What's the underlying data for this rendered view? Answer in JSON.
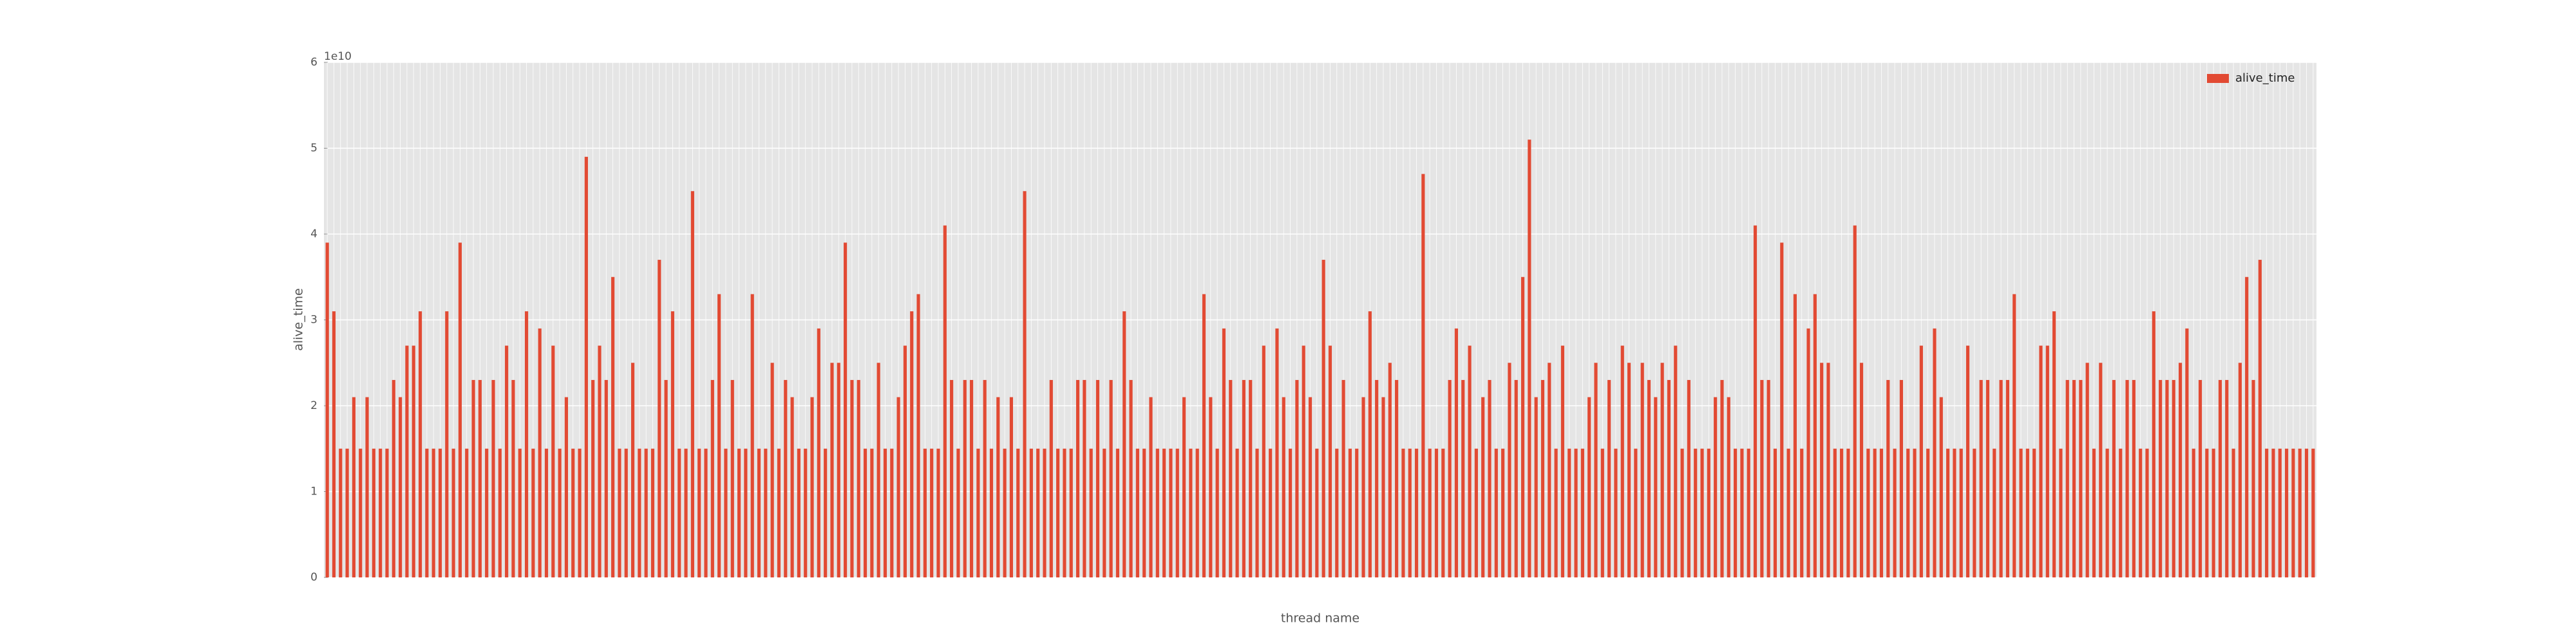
{
  "chart_data": {
    "type": "bar",
    "xlabel": "thread name",
    "ylabel": "alive_time",
    "offset_label": "1e10",
    "categories": [
      null,
      null,
      null,
      null,
      null,
      null,
      null,
      null,
      null,
      null,
      null,
      null,
      null,
      null,
      null,
      null,
      null,
      null,
      null,
      null,
      null,
      null,
      null,
      null,
      null,
      null,
      null,
      null,
      null,
      null,
      null,
      null,
      null,
      null,
      null,
      null,
      null,
      null,
      null,
      null,
      null,
      null,
      null,
      null,
      null,
      null,
      null,
      null,
      null,
      null,
      null,
      null,
      null,
      null,
      null,
      null,
      null,
      null,
      null,
      null,
      null,
      null,
      null,
      null,
      null,
      null,
      null,
      null,
      null,
      null,
      null,
      null,
      null,
      null,
      null,
      null,
      null,
      null,
      null,
      null,
      null,
      null,
      null,
      null,
      null,
      null,
      null,
      null,
      null,
      null,
      null,
      null,
      null,
      null,
      null,
      null,
      null,
      null,
      null,
      null,
      null,
      null,
      null,
      null,
      null,
      null,
      null,
      null,
      null,
      null,
      null,
      null,
      null,
      null,
      null,
      null,
      null,
      null,
      null,
      null,
      null,
      null,
      null,
      null,
      null,
      null,
      null,
      null,
      null,
      null,
      null,
      null,
      null,
      null,
      null,
      null,
      null,
      null,
      null,
      null,
      null,
      null,
      null,
      null,
      null,
      null,
      null,
      null,
      null,
      null,
      null,
      null,
      null,
      null,
      null,
      null,
      null,
      null,
      null,
      null,
      null,
      null,
      null,
      null,
      null,
      null,
      null,
      null,
      null,
      null,
      null,
      null,
      null,
      null,
      null,
      null,
      null,
      null,
      null,
      null,
      null,
      null,
      null,
      null,
      null,
      null,
      null,
      null,
      null,
      null,
      null,
      null,
      null,
      null,
      null,
      null,
      null,
      null,
      null,
      null,
      null,
      null,
      null,
      null,
      null,
      null,
      null,
      null,
      null,
      null,
      null,
      null,
      null,
      null,
      null,
      null,
      null,
      null,
      null,
      null,
      null,
      null,
      null,
      null,
      null,
      null,
      null,
      null,
      null,
      null,
      null,
      null,
      null,
      null,
      null,
      null,
      null,
      null,
      null,
      null,
      null,
      null,
      null,
      null,
      null,
      null,
      null,
      null,
      null,
      null,
      null,
      null,
      null,
      null,
      null,
      null,
      null,
      null,
      null,
      null,
      null,
      null,
      null,
      null,
      null,
      null,
      null,
      null,
      null,
      null,
      null,
      null,
      null,
      null,
      null,
      null,
      null,
      null,
      null,
      null,
      null,
      null,
      null,
      null,
      null,
      null,
      null,
      null,
      null,
      null,
      null,
      null,
      null,
      null,
      null,
      null,
      null,
      null,
      null,
      null
    ],
    "series": [
      {
        "name": "alive_time",
        "color": "#e24a33",
        "values": [
          3.9,
          3.1,
          1.5,
          1.5,
          2.1,
          1.5,
          2.1,
          1.5,
          1.5,
          1.5,
          2.3,
          2.1,
          2.7,
          2.7,
          3.1,
          1.5,
          1.5,
          1.5,
          3.1,
          1.5,
          3.9,
          1.5,
          2.3,
          2.3,
          1.5,
          2.3,
          1.5,
          2.7,
          2.3,
          1.5,
          3.1,
          1.5,
          2.9,
          1.5,
          2.7,
          1.5,
          2.1,
          1.5,
          1.5,
          4.9,
          2.3,
          2.7,
          2.3,
          3.5,
          1.5,
          1.5,
          2.5,
          1.5,
          1.5,
          1.5,
          3.7,
          2.3,
          3.1,
          1.5,
          1.5,
          4.5,
          1.5,
          1.5,
          2.3,
          3.3,
          1.5,
          2.3,
          1.5,
          1.5,
          3.3,
          1.5,
          1.5,
          2.5,
          1.5,
          2.3,
          2.1,
          1.5,
          1.5,
          2.1,
          2.9,
          1.5,
          2.5,
          2.5,
          3.9,
          2.3,
          2.3,
          1.5,
          1.5,
          2.5,
          1.5,
          1.5,
          2.1,
          2.7,
          3.1,
          3.3,
          1.5,
          1.5,
          1.5,
          4.1,
          2.3,
          1.5,
          2.3,
          2.3,
          1.5,
          2.3,
          1.5,
          2.1,
          1.5,
          2.1,
          1.5,
          4.5,
          1.5,
          1.5,
          1.5,
          2.3,
          1.5,
          1.5,
          1.5,
          2.3,
          2.3,
          1.5,
          2.3,
          1.5,
          2.3,
          1.5,
          3.1,
          2.3,
          1.5,
          1.5,
          2.1,
          1.5,
          1.5,
          1.5,
          1.5,
          2.1,
          1.5,
          1.5,
          3.3,
          2.1,
          1.5,
          2.9,
          2.3,
          1.5,
          2.3,
          2.3,
          1.5,
          2.7,
          1.5,
          2.9,
          2.1,
          1.5,
          2.3,
          2.7,
          2.1,
          1.5,
          3.7,
          2.7,
          1.5,
          2.3,
          1.5,
          1.5,
          2.1,
          3.1,
          2.3,
          2.1,
          2.5,
          2.3,
          1.5,
          1.5,
          1.5,
          4.7,
          1.5,
          1.5,
          1.5,
          2.3,
          2.9,
          2.3,
          2.7,
          1.5,
          2.1,
          2.3,
          1.5,
          1.5,
          2.5,
          2.3,
          3.5,
          5.1,
          2.1,
          2.3,
          2.5,
          1.5,
          2.7,
          1.5,
          1.5,
          1.5,
          2.1,
          2.5,
          1.5,
          2.3,
          1.5,
          2.7,
          2.5,
          1.5,
          2.5,
          2.3,
          2.1,
          2.5,
          2.3,
          2.7,
          1.5,
          2.3,
          1.5,
          1.5,
          1.5,
          2.1,
          2.3,
          2.1,
          1.5,
          1.5,
          1.5,
          4.1,
          2.3,
          2.3,
          1.5,
          3.9,
          1.5,
          3.3,
          1.5,
          2.9,
          3.3,
          2.5,
          2.5,
          1.5,
          1.5,
          1.5,
          4.1,
          2.5,
          1.5,
          1.5,
          1.5,
          2.3,
          1.5,
          2.3,
          1.5,
          1.5,
          2.7,
          1.5,
          2.9,
          2.1,
          1.5,
          1.5,
          1.5,
          2.7,
          1.5,
          2.3,
          2.3,
          1.5,
          2.3,
          2.3,
          3.3,
          1.5,
          1.5,
          1.5,
          2.7,
          2.7,
          3.1,
          1.5,
          2.3,
          2.3,
          2.3,
          2.5,
          1.5,
          2.5,
          1.5,
          2.3,
          1.5,
          2.3,
          2.3,
          1.5,
          1.5,
          3.1,
          2.3,
          2.3,
          2.3,
          2.5,
          2.9,
          1.5,
          2.3,
          1.5,
          1.5,
          2.3,
          2.3,
          1.5,
          2.5,
          3.5,
          2.3,
          3.7,
          1.5,
          1.5,
          1.5,
          1.5,
          1.5,
          1.5,
          1.5,
          1.5
        ]
      }
    ],
    "ylim": [
      0,
      6
    ],
    "yticks": [
      0,
      1,
      2,
      3,
      4,
      5,
      6
    ],
    "grid": true,
    "legend": "upper right"
  }
}
